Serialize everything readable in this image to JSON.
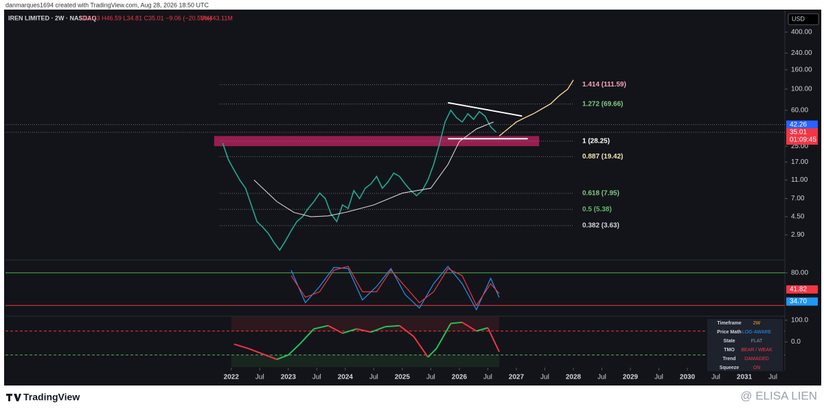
{
  "header": {
    "credit": "danmarques1694 created with TradingView.com, Aug 28, 2026 18:50 UTC",
    "symbol": "IREN LIMITED · 2W · NASDAQ",
    "ohlc": "O45.23 H46.59 L34.81 C35.01 −9.06 (−20.55%)",
    "volume": "Vol443.11M",
    "currency": "USD"
  },
  "chart_data": [
    {
      "type": "line",
      "log_scale": true,
      "ylim": [
        1.6,
        680
      ],
      "xlim": [
        2018.04,
        2031.71
      ],
      "yticks": [
        {
          "value": 400,
          "label": "400.00"
        },
        {
          "value": 240,
          "label": "240.00"
        },
        {
          "value": 160,
          "label": "160.00"
        },
        {
          "value": 100,
          "label": "100.00"
        },
        {
          "value": 60,
          "label": "60.00"
        },
        {
          "value": 25,
          "label": "25.00"
        },
        {
          "value": 17,
          "label": "17.00"
        },
        {
          "value": 11,
          "label": "11.00"
        },
        {
          "value": 7,
          "label": "7.00"
        },
        {
          "value": 4.5,
          "label": "4.50"
        },
        {
          "value": 2.9,
          "label": "2.90"
        }
      ],
      "xticks": [
        {
          "value": 2022,
          "label": "2022"
        },
        {
          "value": 2022.5,
          "label": "Jul"
        },
        {
          "value": 2023,
          "label": "2023"
        },
        {
          "value": 2023.5,
          "label": "Jul"
        },
        {
          "value": 2024,
          "label": "2024"
        },
        {
          "value": 2024.5,
          "label": "Jul"
        },
        {
          "value": 2025,
          "label": "2025"
        },
        {
          "value": 2025.5,
          "label": "Jul"
        },
        {
          "value": 2026,
          "label": "2026"
        },
        {
          "value": 2026.5,
          "label": "Jul"
        },
        {
          "value": 2027,
          "label": "2027"
        },
        {
          "value": 2027.5,
          "label": "Jul"
        },
        {
          "value": 2028,
          "label": "2028"
        },
        {
          "value": 2028.5,
          "label": "Jul"
        },
        {
          "value": 2029,
          "label": "2029"
        },
        {
          "value": 2029.5,
          "label": "Jul"
        },
        {
          "value": 2030,
          "label": "2030"
        },
        {
          "value": 2030.5,
          "label": "Jul"
        },
        {
          "value": 2031,
          "label": "2031"
        },
        {
          "value": 2031.5,
          "label": "Jul"
        }
      ],
      "zones": [
        {
          "x": [
            2021.7,
            2027.4
          ],
          "y": [
            25,
            32
          ],
          "color": "#b0205a"
        }
      ],
      "trendlines": [
        {
          "x": [
            2025.8,
            2027.1
          ],
          "y": [
            72,
            52
          ],
          "color": "#ffffff"
        },
        {
          "x": [
            2025.8,
            2027.2
          ],
          "y": [
            30,
            30
          ],
          "color": "#ffffff"
        }
      ],
      "series": [
        {
          "color": "#22ab94",
          "width": 1.6,
          "x": [
            2021.85,
            2021.95,
            2022.05,
            2022.15,
            2022.25,
            2022.35,
            2022.45,
            2022.55,
            2022.65,
            2022.75,
            2022.85,
            2022.95,
            2023.05,
            2023.15,
            2023.25,
            2023.35,
            2023.45,
            2023.55,
            2023.65,
            2023.75,
            2023.85,
            2023.95,
            2024.05,
            2024.15,
            2024.25,
            2024.35,
            2024.45,
            2024.55,
            2024.65,
            2024.75,
            2024.85,
            2024.95,
            2025.05,
            2025.15,
            2025.25,
            2025.35,
            2025.45,
            2025.55,
            2025.65,
            2025.75,
            2025.85,
            2025.95,
            2026.05,
            2026.15,
            2026.25,
            2026.35,
            2026.45,
            2026.55,
            2026.65
          ],
          "values": [
            27,
            18,
            14,
            11,
            9,
            6,
            4,
            3.5,
            3,
            2.4,
            2,
            2.5,
            3.2,
            4,
            4.5,
            5.5,
            6.5,
            8,
            7,
            4.8,
            4,
            6,
            5.5,
            8.5,
            7,
            9,
            10,
            12,
            9,
            10.5,
            13,
            12,
            10,
            8.5,
            7.5,
            8.5,
            11,
            16,
            26,
            45,
            60,
            50,
            45,
            55,
            48,
            58,
            52,
            40,
            35.01
          ]
        },
        {
          "color": "#e8e8e8",
          "width": 1,
          "x": [
            2022.4,
            2022.8,
            2023.1,
            2023.4,
            2023.7,
            2024.0,
            2024.5,
            2025.0,
            2025.5,
            2025.8,
            2026.0,
            2026.3,
            2026.6
          ],
          "values": [
            11,
            6.5,
            5,
            4.5,
            4.6,
            5,
            6,
            8,
            9,
            16,
            28,
            38,
            45
          ]
        },
        {
          "color": "#f5d78e",
          "width": 1.4,
          "x": [
            2026.7,
            2026.85,
            2027.0,
            2027.15,
            2027.3,
            2027.45,
            2027.6,
            2027.75,
            2027.9,
            2028.0
          ],
          "values": [
            32,
            38,
            45,
            50,
            55,
            62,
            70,
            85,
            100,
            125
          ]
        }
      ],
      "fib_levels": [
        {
          "value": 111.59,
          "label": "1.414 (111.59)",
          "color": "#f7a6b8"
        },
        {
          "value": 69.66,
          "label": "1.272 (69.66)",
          "color": "#81c784"
        },
        {
          "value": 28.25,
          "label": "1 (28.25)",
          "color": "#ffffff"
        },
        {
          "value": 19.42,
          "label": "0.887 (19.42)",
          "color": "#f5e6b0"
        },
        {
          "value": 7.95,
          "label": "0.618 (7.95)",
          "color": "#81c784"
        },
        {
          "value": 5.38,
          "label": "0.5 (5.38)",
          "color": "#66bb6a"
        },
        {
          "value": 3.63,
          "label": "0.382 (3.63)",
          "color": "#d1d4dc"
        }
      ],
      "price_labels": [
        {
          "value": 42.26,
          "color": "#2962ff"
        },
        {
          "value": 35.01,
          "color": "#f23645",
          "countdown": "01:09:45"
        }
      ]
    },
    {
      "type": "line",
      "ylim": [
        0,
        100
      ],
      "xlim": [
        2018.04,
        2031.71
      ],
      "yticks": [
        {
          "value": 80,
          "label": "80.00"
        }
      ],
      "hlines": [
        {
          "value": 80,
          "color": "#4caf50"
        },
        {
          "value": 20,
          "color": "#f23645"
        }
      ],
      "series": [
        {
          "color": "#2196f3",
          "x": [
            2023.05,
            2023.3,
            2023.55,
            2023.8,
            2024.05,
            2024.3,
            2024.55,
            2024.8,
            2025.05,
            2025.3,
            2025.55,
            2025.8,
            2026.05,
            2026.3,
            2026.55,
            2026.7
          ],
          "values": [
            85,
            25,
            55,
            90,
            88,
            30,
            55,
            88,
            40,
            15,
            60,
            92,
            60,
            12,
            70,
            34.7
          ],
          "last_label": "34.70"
        },
        {
          "color": "#f23645",
          "x": [
            2023.05,
            2023.3,
            2023.55,
            2023.8,
            2024.05,
            2024.3,
            2024.55,
            2024.8,
            2025.05,
            2025.3,
            2025.55,
            2025.8,
            2026.05,
            2026.3,
            2026.55,
            2026.7
          ],
          "values": [
            75,
            35,
            45,
            85,
            92,
            45,
            45,
            85,
            55,
            25,
            45,
            88,
            75,
            20,
            60,
            41.82
          ],
          "last_label": "41.82"
        }
      ]
    },
    {
      "type": "slope_line",
      "ylim": [
        -115,
        115
      ],
      "xlim": [
        2018.04,
        2031.71
      ],
      "yticks": [
        {
          "value": 100,
          "label": "100.0"
        },
        {
          "value": 0,
          "label": "0.0"
        }
      ],
      "hlines": [
        {
          "value": 50,
          "color": "#f23645"
        },
        {
          "value": -60,
          "color": "#4caf50"
        }
      ],
      "up_color": "#22c55e",
      "down_color": "#f23645",
      "series": [
        {
          "x": [
            2022.05,
            2022.3,
            2022.55,
            2022.8,
            2023.0,
            2023.2,
            2023.45,
            2023.7,
            2023.95,
            2024.2,
            2024.45,
            2024.7,
            2024.95,
            2025.2,
            2025.45,
            2025.6,
            2025.85,
            2026.05,
            2026.3,
            2026.5,
            2026.7
          ],
          "values": [
            -10,
            -30,
            -55,
            -80,
            -60,
            -10,
            60,
            75,
            40,
            60,
            45,
            70,
            75,
            25,
            -70,
            -30,
            85,
            90,
            50,
            65,
            -45
          ]
        }
      ]
    }
  ],
  "table": {
    "rows": [
      [
        "Timeframe",
        "2W"
      ],
      [
        "Price Math",
        "LOG-AWARE"
      ],
      [
        "State",
        "FLAT"
      ],
      [
        "TMO",
        "BEAR / WEAK"
      ],
      [
        "Trend",
        "DAMAGED"
      ],
      [
        "Squeeze",
        "ON"
      ]
    ],
    "colors": [
      "#f5a623",
      "#2196f3",
      "#9598a1",
      "#f23645",
      "#f23645",
      "#f23645"
    ]
  },
  "footer": {
    "brand": "TradingView",
    "watermark": "@ ELISA LIEN"
  }
}
